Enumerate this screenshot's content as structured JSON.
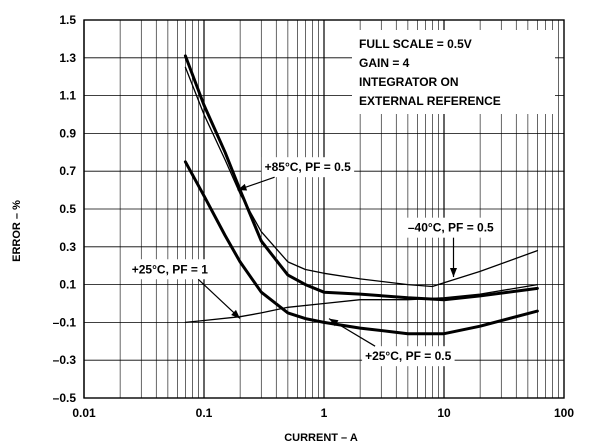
{
  "chart_data": {
    "type": "line",
    "xscale": "log",
    "xlim": [
      0.01,
      100
    ],
    "ylim": [
      -0.5,
      1.5
    ],
    "xlabel": "CURRENT – A",
    "ylabel": "ERROR – %",
    "x_ticks": [
      "0.01",
      "0.1",
      "1",
      "10",
      "100"
    ],
    "y_ticks": [
      "–0.5",
      "–0.3",
      "–0.1",
      "0.1",
      "0.3",
      "0.5",
      "0.7",
      "0.9",
      "1.1",
      "1.3",
      "1.5"
    ],
    "grid": true,
    "info_box": [
      "FULL SCALE = 0.5V",
      "GAIN = 4",
      "INTEGRATOR ON",
      "EXTERNAL REFERENCE"
    ],
    "series": [
      {
        "name": "+85°C, PF = 0.5",
        "x": [
          0.07,
          0.1,
          0.15,
          0.2,
          0.3,
          0.5,
          0.7,
          1,
          2,
          5,
          10,
          20,
          60
        ],
        "y": [
          1.31,
          1.05,
          0.8,
          0.6,
          0.33,
          0.15,
          0.1,
          0.06,
          0.05,
          0.03,
          0.02,
          0.04,
          0.08
        ]
      },
      {
        "name": "–40°C, PF = 0.5",
        "x": [
          0.07,
          0.1,
          0.15,
          0.2,
          0.3,
          0.5,
          0.7,
          1,
          2,
          5,
          8,
          10,
          20,
          60
        ],
        "y": [
          1.25,
          1.0,
          0.76,
          0.58,
          0.38,
          0.22,
          0.18,
          0.16,
          0.13,
          0.1,
          0.09,
          0.11,
          0.17,
          0.28
        ]
      },
      {
        "name": "+25°C, PF = 1",
        "x": [
          0.07,
          0.1,
          0.2,
          0.3,
          0.5,
          1,
          2,
          5,
          10,
          20,
          60
        ],
        "y": [
          -0.1,
          -0.09,
          -0.07,
          -0.05,
          -0.02,
          0.0,
          0.02,
          0.02,
          0.03,
          0.05,
          0.1
        ]
      },
      {
        "name": "+25°C, PF = 0.5",
        "x": [
          0.07,
          0.1,
          0.15,
          0.2,
          0.3,
          0.5,
          0.7,
          1,
          2,
          5,
          10,
          20,
          60
        ],
        "y": [
          0.75,
          0.57,
          0.36,
          0.22,
          0.06,
          -0.05,
          -0.08,
          -0.1,
          -0.13,
          -0.16,
          -0.16,
          -0.12,
          -0.04
        ]
      }
    ],
    "annotations": [
      {
        "text": "+85°C, PF = 0.5",
        "at": [
          0.32,
          0.7
        ],
        "points_to": [
          0.19,
          0.6
        ]
      },
      {
        "text": "–40°C, PF = 0.5",
        "at": [
          5,
          0.38
        ],
        "points_to": [
          12,
          0.14
        ]
      },
      {
        "text": "+25°C, PF = 1",
        "at": [
          0.025,
          0.16
        ],
        "points_to": [
          0.2,
          -0.08
        ]
      },
      {
        "text": "+25°C, PF = 0.5",
        "at": [
          2.2,
          -0.3
        ],
        "points_to": [
          1.1,
          -0.08
        ]
      }
    ]
  }
}
